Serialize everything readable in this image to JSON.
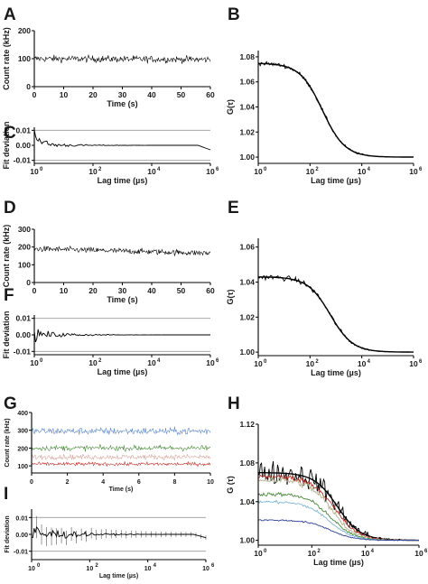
{
  "chart_data": [
    {
      "panel": "A",
      "type": "line",
      "xlabel": "Time  (s)",
      "ylabel": "Count rate (kHz)",
      "xlim": [
        0,
        60
      ],
      "ylim": [
        0,
        200
      ],
      "xticks": [
        "0",
        "10",
        "20",
        "30",
        "40",
        "50",
        "60"
      ],
      "yticks": [
        "0",
        "100",
        "200"
      ],
      "series": [
        {
          "color": "#000000",
          "mean": 100,
          "noise": 12,
          "trend": -3,
          "points": 260
        }
      ]
    },
    {
      "panel": "B",
      "type": "line",
      "xlabel": "Lag time  (µs)",
      "ylabel": "G(τ)",
      "xscale": "log",
      "xlim": [
        1,
        1000000
      ],
      "ylim": [
        0.995,
        1.085
      ],
      "xticks": [
        "10",
        "10",
        "10",
        "10"
      ],
      "xtick_exponents": [
        "0",
        "2",
        "4",
        "6"
      ],
      "yticks": [
        "1.00",
        "1.02",
        "1.04",
        "1.06",
        "1.08"
      ],
      "series": [
        {
          "color": "#000000",
          "amplitude": 0.075,
          "tau_d": 300,
          "noise": 0.0015,
          "fit": true
        }
      ]
    },
    {
      "panel": "C",
      "type": "line",
      "xlabel": "Lag time  (µs)",
      "ylabel": "Fit deviation",
      "xscale": "log",
      "xlim": [
        1,
        1000000
      ],
      "ylim": [
        -0.012,
        0.012
      ],
      "xticks": [
        "10",
        "10",
        "10",
        "10"
      ],
      "xtick_exponents": [
        "0",
        "2",
        "4",
        "6"
      ],
      "yticks": [
        "0.01",
        "0.00",
        "-0.01"
      ],
      "reference_lines": [
        0.01,
        -0.01
      ],
      "series": [
        {
          "color": "#000000",
          "start": 0.009,
          "noise": 0.0025,
          "end_drop": -0.003
        }
      ]
    },
    {
      "panel": "D",
      "type": "line",
      "xlabel": "Time  (s)",
      "ylabel": "Count rate (kHz)",
      "xlim": [
        0,
        60
      ],
      "ylim": [
        0,
        300
      ],
      "xticks": [
        "0",
        "10",
        "20",
        "30",
        "40",
        "50",
        "60"
      ],
      "yticks": [
        "0",
        "100",
        "200",
        "300"
      ],
      "series": [
        {
          "color": "#000000",
          "mean": 190,
          "noise": 16,
          "trend": -25,
          "points": 280
        }
      ]
    },
    {
      "panel": "E",
      "type": "line",
      "xlabel": "Lag time  (µs)",
      "ylabel": "G(τ)",
      "xscale": "log",
      "xlim": [
        1,
        1000000
      ],
      "ylim": [
        0.998,
        1.065
      ],
      "xticks": [
        "10",
        "10",
        "10",
        "10"
      ],
      "xtick_exponents": [
        "0",
        "2",
        "4",
        "6"
      ],
      "yticks": [
        "1.00",
        "1.02",
        "1.04",
        "1.06"
      ],
      "series": [
        {
          "color": "#000000",
          "amplitude": 0.043,
          "tau_d": 600,
          "noise": 0.0015,
          "fit": true
        }
      ]
    },
    {
      "panel": "F",
      "type": "line",
      "xlabel": "Lag time  (µs)",
      "ylabel": "Fit deviation",
      "xscale": "log",
      "xlim": [
        1,
        1000000
      ],
      "ylim": [
        -0.012,
        0.012
      ],
      "xticks": [
        "10",
        "10",
        "10",
        "10"
      ],
      "xtick_exponents": [
        "0",
        "2",
        "4",
        "6"
      ],
      "yticks": [
        "0.01",
        "0.00",
        "-0.01"
      ],
      "reference_lines": [
        0.01,
        -0.01
      ],
      "series": [
        {
          "color": "#000000",
          "start": 0.0,
          "noise": 0.003,
          "end_drop": 0.0
        }
      ]
    },
    {
      "panel": "G",
      "type": "line",
      "xlabel": "Time  (s)",
      "ylabel": "Count rate (kHz)",
      "xlim": [
        0,
        10
      ],
      "ylim": [
        60,
        400
      ],
      "xticks": [
        "0",
        "2",
        "4",
        "6",
        "8",
        "10"
      ],
      "yticks": [
        "100",
        "200",
        "300",
        "400"
      ],
      "series": [
        {
          "color": "#5b86c8",
          "mean": 295,
          "noise": 20,
          "trend": 0,
          "points": 240
        },
        {
          "color": "#4a8b3a",
          "mean": 200,
          "noise": 15,
          "trend": 0,
          "points": 240
        },
        {
          "color": "#d9a7a0",
          "mean": 150,
          "noise": 14,
          "trend": 0,
          "points": 240
        },
        {
          "color": "#c0322c",
          "mean": 110,
          "noise": 10,
          "trend": 0,
          "points": 240
        }
      ]
    },
    {
      "panel": "H",
      "type": "line",
      "xlabel": "Lag time  (µs)",
      "ylabel": "G (τ)",
      "xscale": "log",
      "xlim": [
        1,
        1000000
      ],
      "ylim": [
        0.995,
        1.12
      ],
      "xticks": [
        "10",
        "10",
        "10",
        "10"
      ],
      "xtick_exponents": [
        "0",
        "2",
        "4",
        "6"
      ],
      "yticks": [
        "1.00",
        "1.04",
        "1.08",
        "1.12"
      ],
      "series": [
        {
          "color": "#000000",
          "amplitude": 0.07,
          "tau_d": 900,
          "noise": 0.012,
          "fit": true
        },
        {
          "color": "#c0322c",
          "amplitude": 0.066,
          "tau_d": 700,
          "noise": 0.003,
          "fit": false
        },
        {
          "color": "#b5b08a",
          "amplitude": 0.063,
          "tau_d": 550,
          "noise": 0.004,
          "fit": false
        },
        {
          "color": "#4a8b3a",
          "amplitude": 0.048,
          "tau_d": 500,
          "noise": 0.002,
          "fit": false
        },
        {
          "color": "#7fb6d6",
          "amplitude": 0.04,
          "tau_d": 450,
          "noise": 0.0015,
          "fit": false
        },
        {
          "color": "#2b3f99",
          "amplitude": 0.021,
          "tau_d": 500,
          "noise": 0.0008,
          "fit": false
        }
      ]
    },
    {
      "panel": "I",
      "type": "line",
      "xlabel": "Lag time  (µs)",
      "ylabel": "Fit deviation",
      "xscale": "log",
      "xlim": [
        1,
        1000000
      ],
      "ylim": [
        -0.015,
        0.015
      ],
      "xticks": [
        "10",
        "10",
        "10",
        "10"
      ],
      "xtick_exponents": [
        "0",
        "2",
        "4",
        "6"
      ],
      "yticks": [
        "0.01",
        "0.00",
        "-0.01"
      ],
      "reference_lines": [
        0.01,
        -0.01
      ],
      "series": [
        {
          "color": "#000000",
          "start": 0.0,
          "noise": 0.006,
          "end_drop": -0.002,
          "error_bars": true
        }
      ]
    }
  ]
}
